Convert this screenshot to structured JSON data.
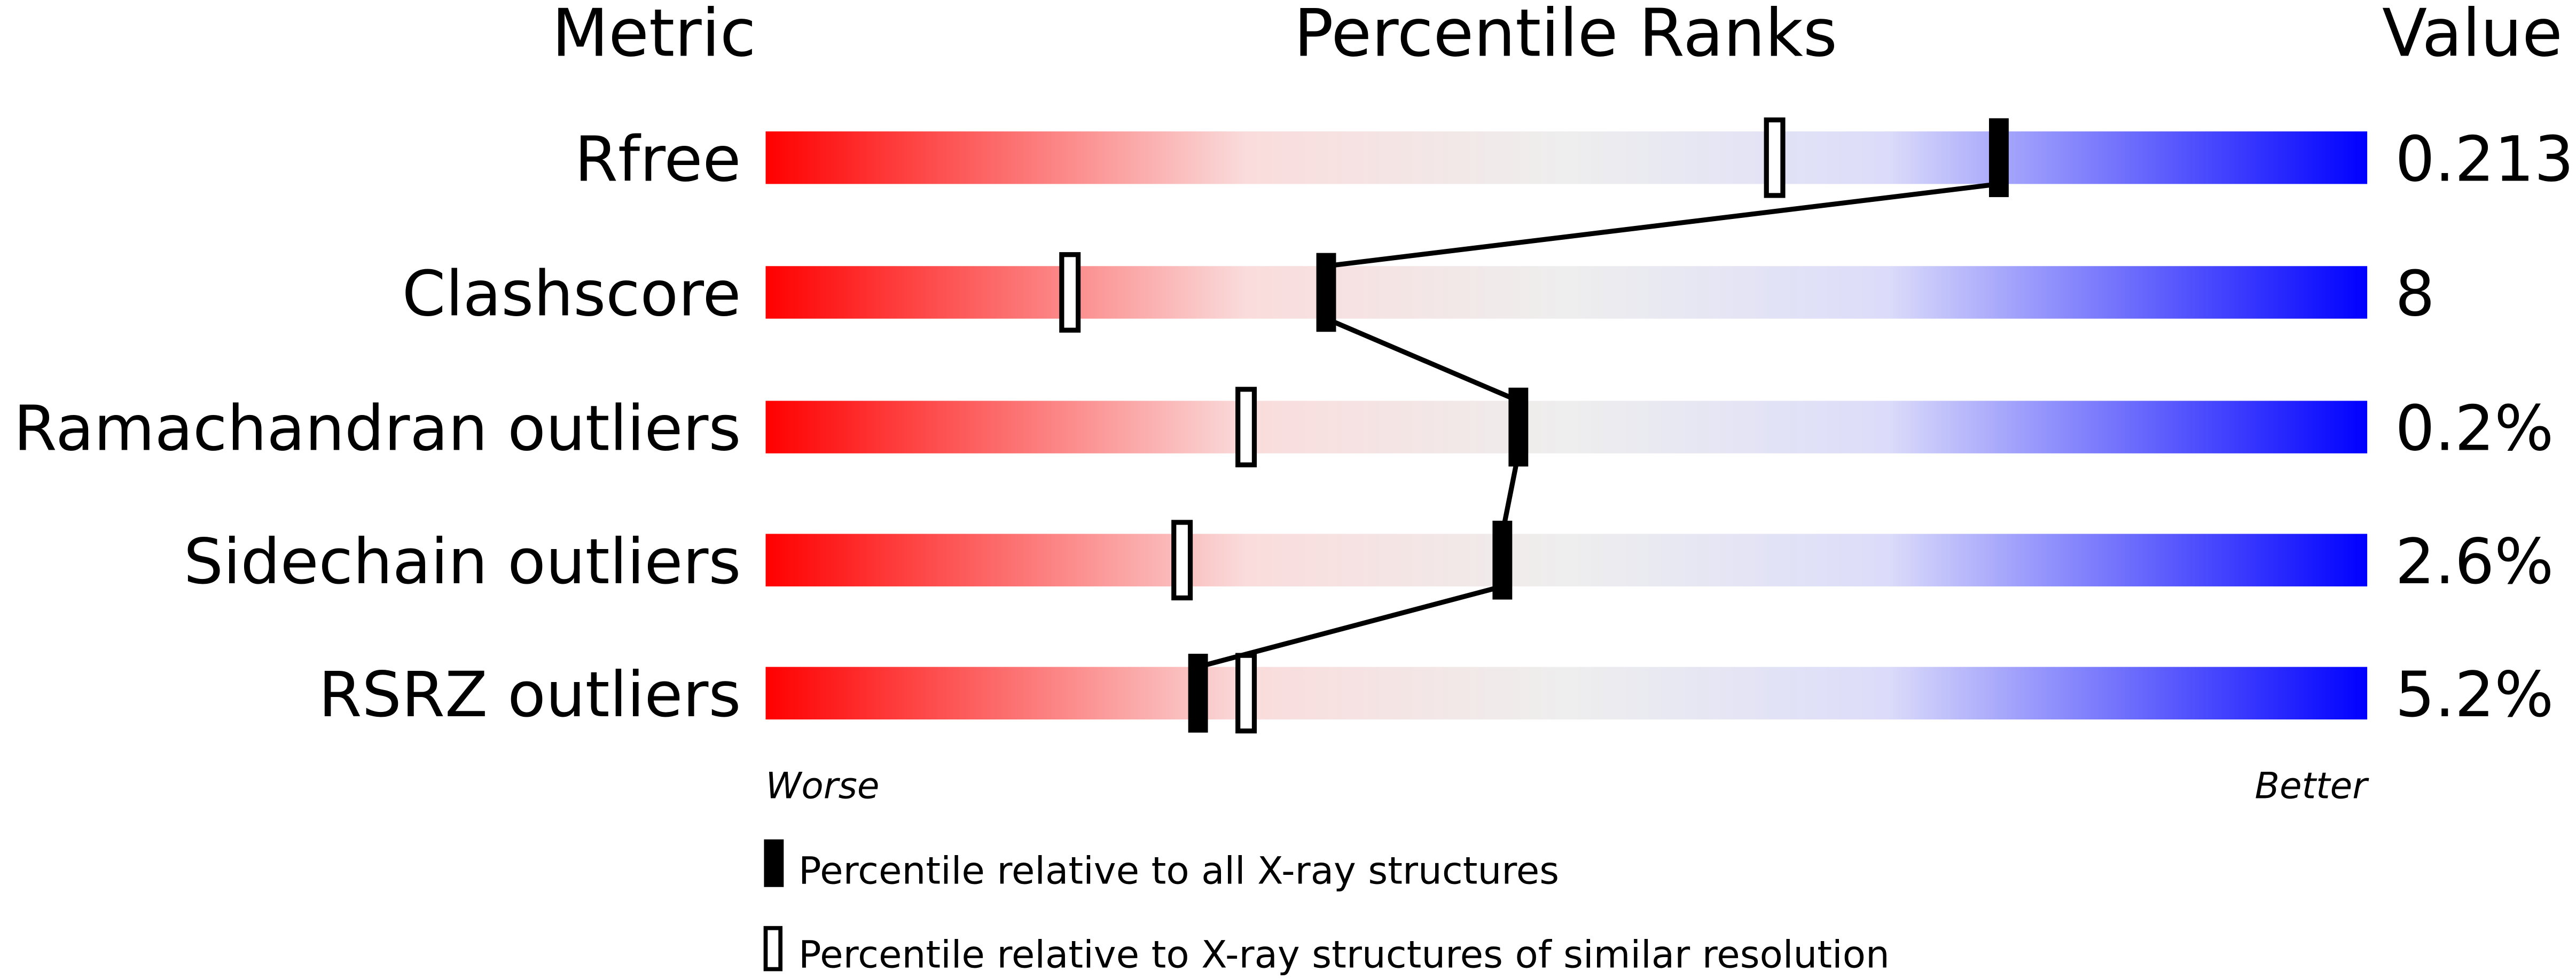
{
  "chart_data": {
    "type": "percentile-bar",
    "headers": {
      "metric": "Metric",
      "ranks": "Percentile Ranks",
      "value": "Value"
    },
    "axis": {
      "min": 0,
      "max": 100,
      "left_label": "Worse",
      "right_label": "Better"
    },
    "gradient_colors": [
      "#ff0000",
      "#fadcdc",
      "#eeeeee",
      "#dcdcfa",
      "#0000ff"
    ],
    "rows": [
      {
        "metric": "Rfree",
        "value": "0.213",
        "percentile_all": 77,
        "percentile_similar": 63
      },
      {
        "metric": "Clashscore",
        "value": "8",
        "percentile_all": 35,
        "percentile_similar": 19
      },
      {
        "metric": "Ramachandran outliers",
        "value": "0.2%",
        "percentile_all": 47,
        "percentile_similar": 30
      },
      {
        "metric": "Sidechain outliers",
        "value": "2.6%",
        "percentile_all": 46,
        "percentile_similar": 26
      },
      {
        "metric": "RSRZ outliers",
        "value": "5.2%",
        "percentile_all": 27,
        "percentile_similar": 30
      }
    ],
    "legend": [
      {
        "marker": "filled",
        "label": "Percentile relative to all X-ray structures"
      },
      {
        "marker": "open",
        "label": "Percentile relative to X-ray structures of similar resolution"
      }
    ]
  }
}
